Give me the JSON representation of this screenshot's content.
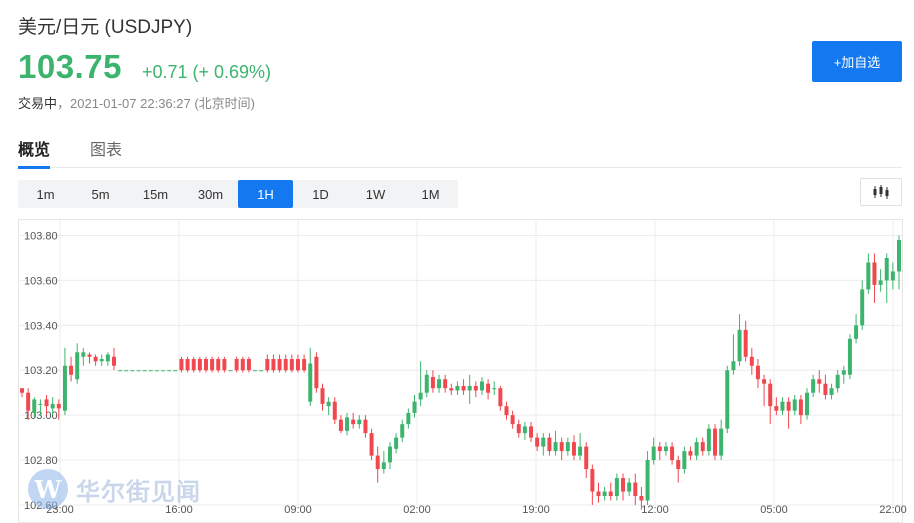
{
  "header": {
    "title": "美元/日元  (USDJPY)",
    "price": "103.75",
    "change": "+0.71 (+ 0.69%)",
    "state": "交易中",
    "timestamp": "，2021-01-07 22:36:27 (北京时间)",
    "add_button": "+加自选"
  },
  "tabs": [
    {
      "label": "概览",
      "active": true
    },
    {
      "label": "图表",
      "active": false
    }
  ],
  "periods": [
    {
      "label": "1m",
      "active": false
    },
    {
      "label": "5m",
      "active": false
    },
    {
      "label": "15m",
      "active": false
    },
    {
      "label": "30m",
      "active": false
    },
    {
      "label": "1H",
      "active": true
    },
    {
      "label": "1D",
      "active": false
    },
    {
      "label": "1W",
      "active": false
    },
    {
      "label": "1M",
      "active": false
    }
  ],
  "icons": {
    "chart_type": "candlestick-icon",
    "watermark": "wallstreetcn-logo"
  },
  "colors": {
    "up": "#3db46d",
    "down": "#f0484e",
    "accent": "#1478f0"
  },
  "watermark": {
    "logo_letter": "W",
    "text": "华尔街见闻"
  },
  "chart_data": {
    "type": "candlestick",
    "y_ticks": [
      "103.80",
      "103.60",
      "103.40",
      "103.20",
      "103.00",
      "102.80",
      "102.60"
    ],
    "ylim": [
      102.6,
      103.82
    ],
    "x_ticks": [
      "23:00",
      "16:00",
      "09:00",
      "02:00",
      "19:00",
      "12:00",
      "05:00",
      "22:00"
    ],
    "grid": true,
    "candles": [
      [
        103.12,
        103.1,
        103.12,
        103.08
      ],
      [
        103.1,
        103.02,
        103.12,
        102.98
      ],
      [
        103.01,
        103.07,
        103.08,
        102.99
      ],
      [
        103.05,
        103.05,
        103.07,
        103.0
      ],
      [
        103.07,
        103.04,
        103.09,
        103.0
      ],
      [
        103.03,
        103.05,
        103.08,
        103.0
      ],
      [
        103.05,
        103.03,
        103.07,
        102.98
      ],
      [
        103.02,
        103.22,
        103.3,
        103.0
      ],
      [
        103.22,
        103.18,
        103.26,
        103.15
      ],
      [
        103.16,
        103.28,
        103.32,
        103.14
      ],
      [
        103.26,
        103.28,
        103.3,
        103.22
      ],
      [
        103.27,
        103.26,
        103.28,
        103.23
      ],
      [
        103.26,
        103.24,
        103.27,
        103.22
      ],
      [
        103.24,
        103.25,
        103.27,
        103.22
      ],
      [
        103.24,
        103.27,
        103.28,
        103.22
      ],
      [
        103.26,
        103.22,
        103.3,
        103.2
      ],
      [
        103.2,
        103.2,
        103.2,
        103.2
      ],
      [
        103.2,
        103.2,
        103.2,
        103.2
      ],
      [
        103.2,
        103.2,
        103.2,
        103.2
      ],
      [
        103.2,
        103.2,
        103.2,
        103.2
      ],
      [
        103.2,
        103.2,
        103.2,
        103.2
      ],
      [
        103.2,
        103.2,
        103.2,
        103.2
      ],
      [
        103.2,
        103.2,
        103.2,
        103.2
      ],
      [
        103.2,
        103.2,
        103.2,
        103.2
      ],
      [
        103.2,
        103.2,
        103.2,
        103.2
      ],
      [
        103.2,
        103.2,
        103.2,
        103.2
      ],
      [
        103.25,
        103.2,
        103.26,
        103.19
      ],
      [
        103.25,
        103.2,
        103.26,
        103.19
      ],
      [
        103.25,
        103.2,
        103.26,
        103.19
      ],
      [
        103.25,
        103.2,
        103.26,
        103.19
      ],
      [
        103.25,
        103.2,
        103.26,
        103.19
      ],
      [
        103.25,
        103.2,
        103.26,
        103.19
      ],
      [
        103.25,
        103.2,
        103.26,
        103.19
      ],
      [
        103.25,
        103.2,
        103.26,
        103.19
      ],
      [
        103.2,
        103.2,
        103.2,
        103.2
      ],
      [
        103.25,
        103.2,
        103.26,
        103.19
      ],
      [
        103.25,
        103.2,
        103.26,
        103.19
      ],
      [
        103.25,
        103.2,
        103.26,
        103.19
      ],
      [
        103.2,
        103.2,
        103.2,
        103.2
      ],
      [
        103.2,
        103.2,
        103.2,
        103.2
      ],
      [
        103.25,
        103.2,
        103.27,
        103.19
      ],
      [
        103.25,
        103.2,
        103.27,
        103.19
      ],
      [
        103.25,
        103.2,
        103.27,
        103.19
      ],
      [
        103.25,
        103.2,
        103.27,
        103.19
      ],
      [
        103.25,
        103.2,
        103.27,
        103.19
      ],
      [
        103.25,
        103.2,
        103.27,
        103.19
      ],
      [
        103.25,
        103.2,
        103.27,
        103.19
      ],
      [
        103.06,
        103.23,
        103.3,
        103.04
      ],
      [
        103.26,
        103.12,
        103.28,
        103.1
      ],
      [
        103.12,
        103.05,
        103.14,
        103.02
      ],
      [
        103.04,
        103.06,
        103.08,
        103.0
      ],
      [
        103.06,
        102.98,
        103.08,
        102.96
      ],
      [
        102.98,
        102.93,
        103.0,
        102.92
      ],
      [
        102.93,
        102.99,
        103.01,
        102.91
      ],
      [
        102.98,
        102.96,
        103.01,
        102.94
      ],
      [
        102.96,
        102.98,
        103.0,
        102.94
      ],
      [
        102.98,
        102.92,
        103.0,
        102.9
      ],
      [
        102.92,
        102.82,
        102.94,
        102.8
      ],
      [
        102.82,
        102.76,
        102.86,
        102.7
      ],
      [
        102.76,
        102.79,
        102.84,
        102.74
      ],
      [
        102.79,
        102.86,
        102.88,
        102.76
      ],
      [
        102.85,
        102.9,
        102.92,
        102.83
      ],
      [
        102.9,
        102.96,
        102.98,
        102.88
      ],
      [
        102.96,
        103.01,
        103.03,
        102.94
      ],
      [
        103.01,
        103.06,
        103.09,
        102.99
      ],
      [
        103.07,
        103.1,
        103.24,
        103.04
      ],
      [
        103.1,
        103.18,
        103.2,
        103.08
      ],
      [
        103.17,
        103.12,
        103.2,
        103.1
      ],
      [
        103.12,
        103.16,
        103.18,
        103.1
      ],
      [
        103.16,
        103.12,
        103.18,
        103.1
      ],
      [
        103.12,
        103.11,
        103.14,
        103.09
      ],
      [
        103.11,
        103.13,
        103.15,
        103.09
      ],
      [
        103.13,
        103.11,
        103.16,
        103.09
      ],
      [
        103.11,
        103.13,
        103.18,
        103.05
      ],
      [
        103.13,
        103.11,
        103.15,
        103.08
      ],
      [
        103.11,
        103.15,
        103.17,
        103.09
      ],
      [
        103.14,
        103.1,
        103.16,
        103.07
      ],
      [
        103.12,
        103.12,
        103.15,
        103.09
      ],
      [
        103.12,
        103.04,
        103.13,
        103.02
      ],
      [
        103.04,
        103.0,
        103.06,
        102.98
      ],
      [
        103.0,
        102.96,
        103.02,
        102.94
      ],
      [
        102.96,
        102.92,
        102.98,
        102.9
      ],
      [
        102.92,
        102.95,
        102.97,
        102.89
      ],
      [
        102.95,
        102.9,
        102.97,
        102.88
      ],
      [
        102.9,
        102.86,
        102.92,
        102.84
      ],
      [
        102.86,
        102.9,
        102.92,
        102.82
      ],
      [
        102.9,
        102.84,
        102.92,
        102.82
      ],
      [
        102.84,
        102.88,
        102.93,
        102.82
      ],
      [
        102.88,
        102.84,
        102.9,
        102.8
      ],
      [
        102.84,
        102.88,
        102.9,
        102.82
      ],
      [
        102.88,
        102.82,
        102.91,
        102.8
      ],
      [
        102.82,
        102.86,
        102.92,
        102.8
      ],
      [
        102.86,
        102.76,
        102.88,
        102.72
      ],
      [
        102.76,
        102.66,
        102.78,
        102.6
      ],
      [
        102.66,
        102.64,
        102.7,
        102.61
      ],
      [
        102.64,
        102.66,
        102.68,
        102.62
      ],
      [
        102.66,
        102.64,
        102.7,
        102.62
      ],
      [
        102.64,
        102.72,
        102.74,
        102.62
      ],
      [
        102.72,
        102.66,
        102.74,
        102.62
      ],
      [
        102.66,
        102.7,
        102.72,
        102.64
      ],
      [
        102.7,
        102.64,
        102.74,
        102.6
      ],
      [
        102.64,
        102.62,
        102.68,
        102.58
      ],
      [
        102.62,
        102.8,
        102.84,
        102.6
      ],
      [
        102.8,
        102.86,
        102.9,
        102.78
      ],
      [
        102.86,
        102.84,
        102.88,
        102.8
      ],
      [
        102.84,
        102.86,
        102.88,
        102.82
      ],
      [
        102.86,
        102.8,
        102.88,
        102.78
      ],
      [
        102.8,
        102.76,
        102.82,
        102.7
      ],
      [
        102.76,
        102.84,
        102.86,
        102.74
      ],
      [
        102.84,
        102.82,
        102.86,
        102.8
      ],
      [
        102.82,
        102.88,
        102.9,
        102.8
      ],
      [
        102.88,
        102.84,
        102.9,
        102.82
      ],
      [
        102.84,
        102.94,
        102.96,
        102.82
      ],
      [
        102.94,
        102.82,
        102.96,
        102.8
      ],
      [
        102.82,
        102.94,
        102.98,
        102.8
      ],
      [
        102.94,
        103.2,
        103.22,
        102.92
      ],
      [
        103.2,
        103.24,
        103.36,
        103.18
      ],
      [
        103.24,
        103.38,
        103.45,
        103.22
      ],
      [
        103.38,
        103.26,
        103.42,
        103.24
      ],
      [
        103.26,
        103.22,
        103.3,
        103.18
      ],
      [
        103.22,
        103.16,
        103.25,
        103.12
      ],
      [
        103.16,
        103.14,
        103.18,
        103.04
      ],
      [
        103.14,
        103.04,
        103.16,
        102.96
      ],
      [
        103.04,
        103.02,
        103.08,
        103.0
      ],
      [
        103.02,
        103.06,
        103.08,
        103.0
      ],
      [
        103.06,
        103.02,
        103.08,
        102.94
      ],
      [
        103.02,
        103.07,
        103.09,
        103.0
      ],
      [
        103.07,
        103.0,
        103.09,
        102.96
      ],
      [
        103.0,
        103.1,
        103.12,
        102.98
      ],
      [
        103.1,
        103.16,
        103.18,
        103.08
      ],
      [
        103.16,
        103.14,
        103.2,
        103.1
      ],
      [
        103.14,
        103.09,
        103.18,
        103.07
      ],
      [
        103.09,
        103.12,
        103.14,
        103.07
      ],
      [
        103.12,
        103.18,
        103.2,
        103.1
      ],
      [
        103.18,
        103.2,
        103.22,
        103.14
      ],
      [
        103.18,
        103.34,
        103.36,
        103.16
      ],
      [
        103.34,
        103.4,
        103.45,
        103.32
      ],
      [
        103.4,
        103.56,
        103.6,
        103.38
      ],
      [
        103.56,
        103.68,
        103.72,
        103.54
      ],
      [
        103.68,
        103.58,
        103.72,
        103.5
      ],
      [
        103.58,
        103.6,
        103.65,
        103.55
      ],
      [
        103.6,
        103.7,
        103.72,
        103.5
      ],
      [
        103.6,
        103.64,
        103.68,
        103.56
      ],
      [
        103.64,
        103.78,
        103.8,
        103.56
      ]
    ]
  }
}
